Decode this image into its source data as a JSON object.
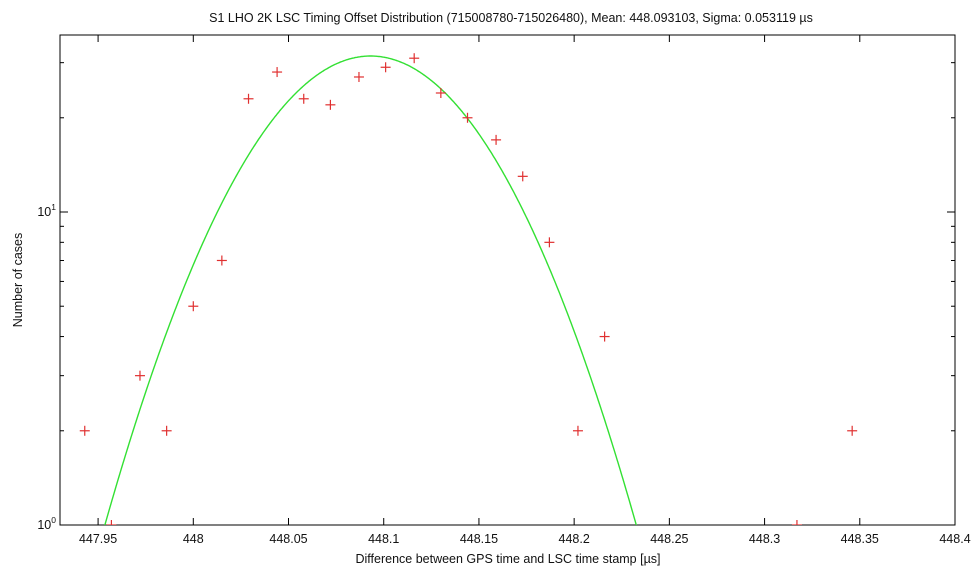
{
  "chart_data": {
    "type": "scatter",
    "title": "S1 LHO 2K LSC Timing Offset Distribution (715008780-715026480), Mean: 448.093103, Sigma: 0.053119 µs",
    "xlabel": "Difference between GPS time and LSC time stamp [µs]",
    "ylabel": "Number of cases",
    "xlim": [
      447.93,
      448.4
    ],
    "ylim": [
      1,
      35
    ],
    "yscale": "log",
    "grid": false,
    "x_ticks": [
      447.95,
      448,
      448.05,
      448.1,
      448.15,
      448.2,
      448.25,
      448.3,
      448.35,
      448.4
    ],
    "x_tick_labels": [
      "447.95",
      "448",
      "448.05",
      "448.1",
      "448.15",
      "448.2",
      "448.25",
      "448.3",
      "448.35",
      "448.4"
    ],
    "y_tick_labels": [
      {
        "value": 1,
        "base": "10",
        "exponent": "0"
      },
      {
        "value": 10,
        "base": "10",
        "exponent": "1"
      }
    ],
    "series": [
      {
        "type": "scatter",
        "marker": "+",
        "color": "#e03030",
        "x": [
          447.943,
          447.957,
          447.972,
          447.986,
          448.0,
          448.015,
          448.029,
          448.044,
          448.058,
          448.072,
          448.087,
          448.101,
          448.116,
          448.13,
          448.144,
          448.159,
          448.173,
          448.187,
          448.202,
          448.216,
          448.317,
          448.346
        ],
        "y": [
          2,
          1,
          3,
          2,
          5,
          7,
          23,
          28,
          23,
          22,
          27,
          29,
          31,
          24,
          20,
          17,
          13,
          8,
          2,
          4,
          1,
          2
        ]
      },
      {
        "type": "line",
        "color": "#33e033",
        "curve": "gaussian",
        "mean": 448.093103,
        "sigma": 0.053119,
        "peak": 31.5
      }
    ]
  }
}
